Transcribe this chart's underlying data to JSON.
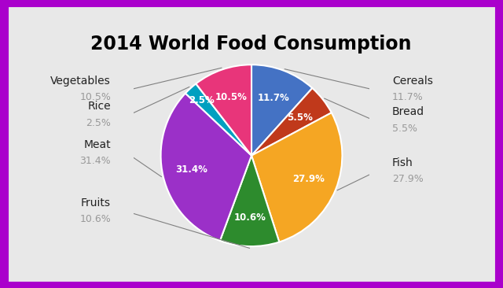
{
  "title": "2014 World Food Consumption",
  "labels": [
    "Cereals",
    "Bread",
    "Fish",
    "Fruits",
    "Meat",
    "Rice",
    "Vegetables"
  ],
  "values": [
    11.7,
    5.5,
    27.9,
    10.6,
    31.4,
    2.5,
    10.5
  ],
  "colors": [
    "#4472C4",
    "#C0391B",
    "#F5A623",
    "#2D8B2D",
    "#9B30C8",
    "#00A0C0",
    "#E8357A"
  ],
  "background_color": "#E8E8E8",
  "border_color": "#AA00CC",
  "title_fontsize": 17,
  "label_fontsize": 10,
  "pct_fontsize": 8.5,
  "startangle": 90
}
